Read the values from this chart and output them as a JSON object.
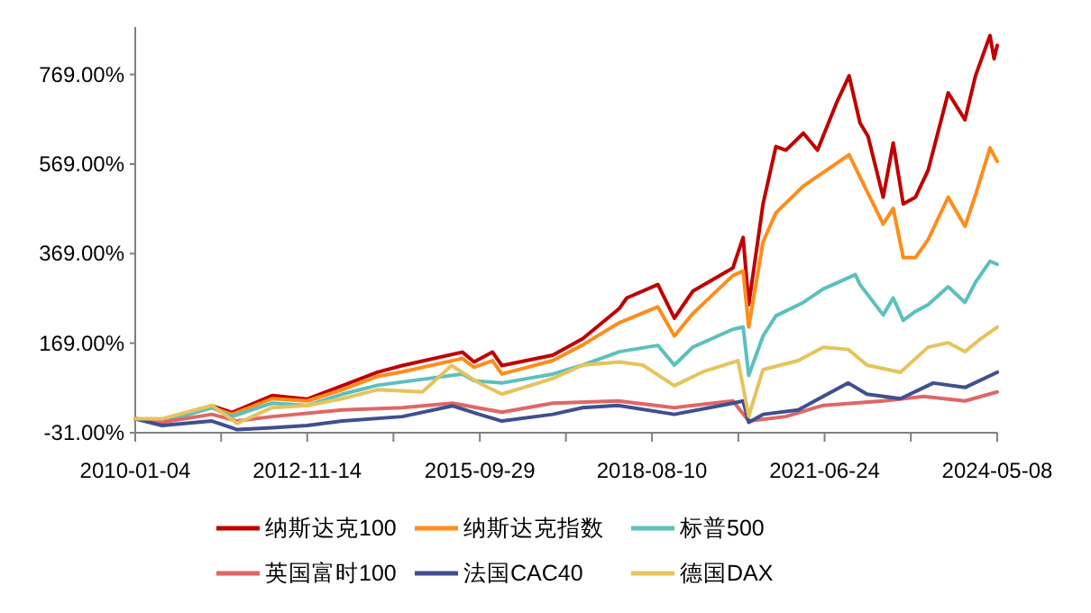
{
  "chart_data": {
    "type": "line",
    "legend": "bottom",
    "grid": false,
    "marker": "none",
    "line_style": "solid",
    "ylim": [
      -31,
      875
    ],
    "yticks": [
      {
        "value": -31,
        "label": "-31.00%"
      },
      {
        "value": 169,
        "label": "169.00%"
      },
      {
        "value": 369,
        "label": "369.00%"
      },
      {
        "value": 569,
        "label": "569.00%"
      },
      {
        "value": 769,
        "label": "769.00%"
      }
    ],
    "xlim": [
      "2010-01-04",
      "2024-05-08"
    ],
    "xticks": [
      "2010-01-04",
      {
        "value": "2011-06-10",
        "label": null
      },
      "2012-11-14",
      {
        "value": "2014-04-22",
        "label": null
      },
      "2015-09-29",
      {
        "value": "2017-03-05",
        "label": null
      },
      "2018-08-10",
      {
        "value": "2020-01-17",
        "label": null
      },
      "2021-06-24",
      {
        "value": "2022-11-30",
        "label": null
      },
      "2024-05-08"
    ],
    "series": [
      {
        "name": "纳斯达克100",
        "color": "#c00000",
        "x": [
          "2010-01-04",
          "2010-06-15",
          "2011-04-15",
          "2011-08-15",
          "2012-04-15",
          "2012-11-15",
          "2013-06-15",
          "2014-01-15",
          "2014-06-15",
          "2015-06-15",
          "2015-08-25",
          "2015-12-15",
          "2016-02-10",
          "2016-12-15",
          "2017-06-15",
          "2018-01-25",
          "2018-03-10",
          "2018-09-15",
          "2018-12-24",
          "2019-04-15",
          "2019-12-15",
          "2020-02-15",
          "2020-03-20",
          "2020-06-15",
          "2020-09-01",
          "2020-11-01",
          "2021-02-15",
          "2021-05-12",
          "2021-09-05",
          "2021-11-20",
          "2022-01-25",
          "2022-03-15",
          "2022-06-15",
          "2022-08-15",
          "2022-10-15",
          "2022-12-28",
          "2023-03-15",
          "2023-07-15",
          "2023-10-25",
          "2023-12-28",
          "2024-03-25",
          "2024-04-19",
          "2024-05-08"
        ],
        "values": [
          0,
          -8,
          29,
          14,
          52,
          44,
          74,
          104,
          119,
          149,
          127,
          149,
          119,
          142,
          179,
          247,
          270,
          300,
          225,
          285,
          337,
          405,
          255,
          480,
          608,
          600,
          638,
          600,
          706,
          766,
          661,
          631,
          495,
          616,
          480,
          495,
          555,
          728,
          668,
          766,
          856,
          804,
          834
        ]
      },
      {
        "name": "纳斯达克指数",
        "color": "#ff8c1a",
        "x": [
          "2010-01-04",
          "2010-06-15",
          "2011-04-15",
          "2011-08-15",
          "2012-04-15",
          "2012-11-15",
          "2013-06-15",
          "2014-01-15",
          "2014-06-15",
          "2015-06-15",
          "2015-08-25",
          "2015-12-15",
          "2016-02-10",
          "2016-12-15",
          "2017-06-15",
          "2018-01-25",
          "2018-09-15",
          "2018-12-24",
          "2019-04-15",
          "2019-12-15",
          "2020-02-15",
          "2020-03-20",
          "2020-06-15",
          "2020-09-01",
          "2021-02-15",
          "2021-11-20",
          "2022-01-25",
          "2022-06-15",
          "2022-08-15",
          "2022-10-15",
          "2022-12-28",
          "2023-03-15",
          "2023-07-15",
          "2023-10-25",
          "2023-12-28",
          "2024-03-25",
          "2024-05-08"
        ],
        "values": [
          0,
          -8,
          25,
          10,
          45,
          40,
          65,
          95,
          105,
          135,
          115,
          130,
          100,
          130,
          165,
          215,
          250,
          185,
          235,
          320,
          330,
          205,
          395,
          460,
          520,
          590,
          540,
          435,
          470,
          360,
          360,
          400,
          495,
          430,
          500,
          605,
          575
        ]
      },
      {
        "name": "标普500",
        "color": "#5bc0be",
        "x": [
          "2010-01-04",
          "2010-06-15",
          "2011-04-15",
          "2011-08-15",
          "2012-04-15",
          "2012-11-15",
          "2013-06-15",
          "2014-01-15",
          "2015-06-15",
          "2015-08-25",
          "2016-02-10",
          "2016-12-15",
          "2017-06-15",
          "2018-01-25",
          "2018-09-15",
          "2018-12-24",
          "2019-04-15",
          "2019-12-15",
          "2020-02-15",
          "2020-03-20",
          "2020-06-15",
          "2020-09-01",
          "2021-02-15",
          "2021-06-15",
          "2021-12-28",
          "2022-01-25",
          "2022-06-15",
          "2022-08-15",
          "2022-10-15",
          "2022-12-28",
          "2023-03-15",
          "2023-07-15",
          "2023-10-25",
          "2023-12-28",
          "2024-03-25",
          "2024-05-08"
        ],
        "values": [
          0,
          -8,
          25,
          5,
          35,
          30,
          55,
          75,
          100,
          85,
          80,
          100,
          120,
          150,
          164,
          120,
          160,
          200,
          205,
          97,
          185,
          230,
          260,
          290,
          322,
          300,
          232,
          270,
          220,
          240,
          255,
          295,
          260,
          305,
          352,
          345
        ]
      },
      {
        "name": "英国富时100",
        "color": "#e06666",
        "x": [
          "2010-01-04",
          "2010-06-15",
          "2011-04-15",
          "2011-09-15",
          "2012-04-15",
          "2013-06-15",
          "2014-06-15",
          "2015-04-15",
          "2016-02-10",
          "2016-12-15",
          "2018-01-15",
          "2018-12-24",
          "2019-12-15",
          "2020-03-20",
          "2020-10-30",
          "2021-06-15",
          "2022-06-15",
          "2023-02-15",
          "2023-10-25",
          "2024-05-08"
        ],
        "values": [
          0,
          -8,
          10,
          -5,
          5,
          20,
          25,
          35,
          15,
          35,
          40,
          25,
          40,
          -5,
          5,
          30,
          40,
          50,
          40,
          60
        ]
      },
      {
        "name": "法国CAC40",
        "color": "#3f4f8f",
        "x": [
          "2010-01-04",
          "2010-06-15",
          "2011-04-15",
          "2011-09-15",
          "2012-04-15",
          "2012-11-15",
          "2013-06-15",
          "2014-06-15",
          "2015-04-15",
          "2015-09-25",
          "2016-02-10",
          "2016-12-15",
          "2017-06-15",
          "2018-01-15",
          "2018-12-24",
          "2019-12-15",
          "2020-02-15",
          "2020-03-20",
          "2020-06-15",
          "2021-01-15",
          "2021-06-15",
          "2021-11-15",
          "2022-03-08",
          "2022-09-28",
          "2023-04-15",
          "2023-10-25",
          "2024-05-08"
        ],
        "values": [
          0,
          -15,
          -5,
          -24,
          -20,
          -15,
          -5,
          5,
          29,
          10,
          -5,
          10,
          25,
          30,
          10,
          35,
          40,
          -8,
          10,
          20,
          50,
          80,
          55,
          45,
          80,
          70,
          104
        ]
      },
      {
        "name": "德国DAX",
        "color": "#e6c35c",
        "x": [
          "2010-01-04",
          "2010-06-15",
          "2011-04-15",
          "2011-09-15",
          "2012-04-15",
          "2012-11-15",
          "2013-06-15",
          "2014-01-15",
          "2014-10-15",
          "2015-04-10",
          "2015-09-25",
          "2016-02-10",
          "2016-12-15",
          "2017-06-15",
          "2018-01-25",
          "2018-06-15",
          "2018-12-24",
          "2019-06-15",
          "2020-01-15",
          "2020-03-20",
          "2020-06-15",
          "2021-01-15",
          "2021-06-15",
          "2021-11-15",
          "2022-03-08",
          "2022-09-28",
          "2023-03-15",
          "2023-07-15",
          "2023-10-25",
          "2024-01-15",
          "2024-05-08"
        ],
        "values": [
          0,
          0,
          30,
          -10,
          25,
          30,
          45,
          65,
          60,
          119,
          80,
          55,
          90,
          120,
          127,
          120,
          74,
          105,
          130,
          6,
          110,
          130,
          160,
          155,
          120,
          104,
          160,
          170,
          150,
          175,
          205
        ]
      }
    ]
  }
}
